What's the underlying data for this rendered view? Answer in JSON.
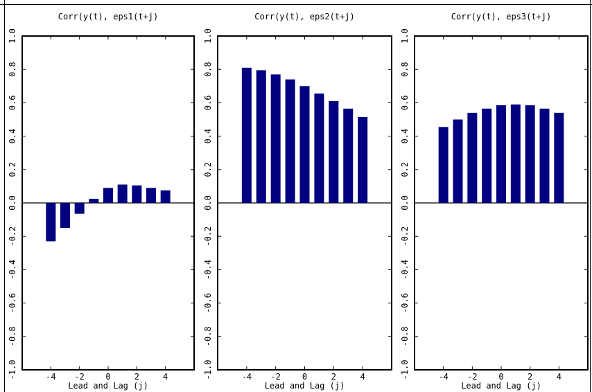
{
  "chart_data": [
    {
      "type": "bar",
      "title": "Corr(y(t), eps1(t+j)",
      "xlabel": "Lead and Lag (j)",
      "ylabel": "",
      "x": [
        -4,
        -3,
        -2,
        -1,
        0,
        1,
        2,
        3,
        4
      ],
      "values": [
        -0.23,
        -0.15,
        -0.065,
        0.025,
        0.09,
        0.11,
        0.105,
        0.09,
        0.075
      ],
      "xlim": [
        -6,
        6
      ],
      "ylim": [
        -1.0,
        1.0
      ],
      "xticks": [
        -4,
        -2,
        0,
        2,
        4
      ],
      "xtick_labels": [
        "-4",
        "-2",
        "0",
        "2",
        "4"
      ],
      "yticks": [
        -1.0,
        -0.8,
        -0.6,
        -0.4,
        -0.2,
        0.0,
        0.2,
        0.4,
        0.6,
        0.8,
        1.0
      ],
      "ytick_labels": [
        "-1.0",
        "-0.8",
        "-0.6",
        "-0.4",
        "-0.2",
        "0.0",
        "0.2",
        "0.4",
        "0.6",
        "0.8",
        "1.0"
      ],
      "bar_color": "#000080",
      "grid": false
    },
    {
      "type": "bar",
      "title": "Corr(y(t), eps2(t+j)",
      "xlabel": "Lead and Lag (j)",
      "ylabel": "",
      "x": [
        -4,
        -3,
        -2,
        -1,
        0,
        1,
        2,
        3,
        4
      ],
      "values": [
        0.81,
        0.795,
        0.77,
        0.74,
        0.7,
        0.655,
        0.61,
        0.565,
        0.515
      ],
      "xlim": [
        -6,
        6
      ],
      "ylim": [
        -1.0,
        1.0
      ],
      "xticks": [
        -4,
        -2,
        0,
        2,
        4
      ],
      "xtick_labels": [
        "-4",
        "-2",
        "0",
        "2",
        "4"
      ],
      "yticks": [
        -1.0,
        -0.8,
        -0.6,
        -0.4,
        -0.2,
        0.0,
        0.2,
        0.4,
        0.6,
        0.8,
        1.0
      ],
      "ytick_labels": [
        "-1.0",
        "-0.8",
        "-0.6",
        "-0.4",
        "-0.2",
        "0.0",
        "0.2",
        "0.4",
        "0.6",
        "0.8",
        "1.0"
      ],
      "bar_color": "#000080",
      "grid": false
    },
    {
      "type": "bar",
      "title": "Corr(y(t), eps3(t+j)",
      "xlabel": "Lead and Lag (j)",
      "ylabel": "",
      "x": [
        -4,
        -3,
        -2,
        -1,
        0,
        1,
        2,
        3,
        4
      ],
      "values": [
        0.455,
        0.5,
        0.54,
        0.565,
        0.585,
        0.59,
        0.585,
        0.565,
        0.54
      ],
      "xlim": [
        -6,
        6
      ],
      "ylim": [
        -1.0,
        1.0
      ],
      "xticks": [
        -4,
        -2,
        0,
        2,
        4
      ],
      "xtick_labels": [
        "-4",
        "-2",
        "0",
        "2",
        "4"
      ],
      "yticks": [
        -1.0,
        -0.8,
        -0.6,
        -0.4,
        -0.2,
        0.0,
        0.2,
        0.4,
        0.6,
        0.8,
        1.0
      ],
      "ytick_labels": [
        "-1.0",
        "-0.8",
        "-0.6",
        "-0.4",
        "-0.2",
        "0.0",
        "0.2",
        "0.4",
        "0.6",
        "0.8",
        "1.0"
      ],
      "bar_color": "#000080",
      "grid": false
    }
  ]
}
